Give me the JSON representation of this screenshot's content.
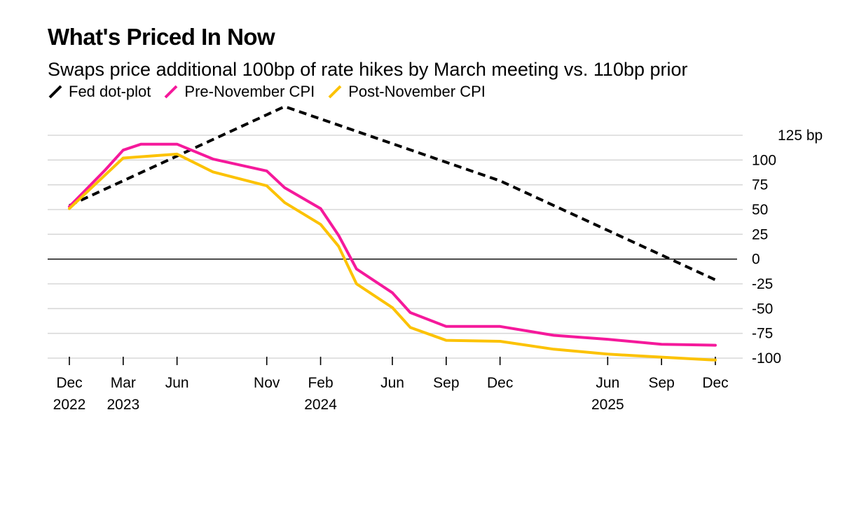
{
  "chart_data": {
    "type": "line",
    "title": "What's Priced In Now",
    "subtitle": "Swaps price additional 100bp of rate hikes by March meeting vs. 110bp prior",
    "y_unit": "bp",
    "ylim": [
      -100,
      125
    ],
    "yticks": [
      125,
      100,
      75,
      50,
      25,
      0,
      -25,
      -50,
      -75,
      -100
    ],
    "ytick_labels": [
      "125 bp",
      "100",
      "75",
      "50",
      "25",
      "0",
      "-25",
      "-50",
      "-75",
      "-100"
    ],
    "grid": true,
    "legend_position": "top-left",
    "x_ticks": [
      {
        "date": "2022-12",
        "label": "Dec",
        "year": "2022"
      },
      {
        "date": "2023-03",
        "label": "Mar",
        "year": "2023"
      },
      {
        "date": "2023-06",
        "label": "Jun",
        "year": ""
      },
      {
        "date": "2023-11",
        "label": "Nov",
        "year": ""
      },
      {
        "date": "2024-02",
        "label": "Feb",
        "year": "2024"
      },
      {
        "date": "2024-06",
        "label": "Jun",
        "year": ""
      },
      {
        "date": "2024-09",
        "label": "Sep",
        "year": ""
      },
      {
        "date": "2024-12",
        "label": "Dec",
        "year": ""
      },
      {
        "date": "2025-06",
        "label": "Jun",
        "year": "2025"
      },
      {
        "date": "2025-09",
        "label": "Sep",
        "year": ""
      },
      {
        "date": "2025-12",
        "label": "Dec",
        "year": ""
      }
    ],
    "series": [
      {
        "name": "Fed dot-plot",
        "color": "#000000",
        "style": "dashed",
        "points": [
          {
            "x": "2022-12",
            "y": 54
          },
          {
            "x": "2023-12",
            "y": 154
          },
          {
            "x": "2024-12",
            "y": 79
          },
          {
            "x": "2025-12",
            "y": -21
          }
        ]
      },
      {
        "name": "Pre-November CPI",
        "color": "#f5199b",
        "style": "solid",
        "points": [
          {
            "x": "2022-12",
            "y": 53
          },
          {
            "x": "2023-02",
            "y": 90
          },
          {
            "x": "2023-03",
            "y": 110
          },
          {
            "x": "2023-04",
            "y": 116
          },
          {
            "x": "2023-06",
            "y": 116
          },
          {
            "x": "2023-08",
            "y": 101
          },
          {
            "x": "2023-11",
            "y": 89
          },
          {
            "x": "2023-12",
            "y": 72
          },
          {
            "x": "2024-02",
            "y": 51
          },
          {
            "x": "2024-03",
            "y": 24
          },
          {
            "x": "2024-04",
            "y": -10
          },
          {
            "x": "2024-06",
            "y": -34
          },
          {
            "x": "2024-07",
            "y": -54
          },
          {
            "x": "2024-09",
            "y": -68
          },
          {
            "x": "2024-12",
            "y": -68
          },
          {
            "x": "2025-03",
            "y": -77
          },
          {
            "x": "2025-06",
            "y": -81
          },
          {
            "x": "2025-09",
            "y": -86
          },
          {
            "x": "2025-12",
            "y": -87
          }
        ]
      },
      {
        "name": "Post-November CPI",
        "color": "#fcc200",
        "style": "solid",
        "points": [
          {
            "x": "2022-12",
            "y": 51
          },
          {
            "x": "2023-03",
            "y": 102
          },
          {
            "x": "2023-06",
            "y": 106
          },
          {
            "x": "2023-08",
            "y": 88
          },
          {
            "x": "2023-11",
            "y": 74
          },
          {
            "x": "2023-12",
            "y": 57
          },
          {
            "x": "2024-02",
            "y": 35
          },
          {
            "x": "2024-03",
            "y": 13
          },
          {
            "x": "2024-04",
            "y": -25
          },
          {
            "x": "2024-06",
            "y": -49
          },
          {
            "x": "2024-07",
            "y": -69
          },
          {
            "x": "2024-09",
            "y": -82
          },
          {
            "x": "2024-12",
            "y": -83
          },
          {
            "x": "2025-03",
            "y": -91
          },
          {
            "x": "2025-06",
            "y": -96
          },
          {
            "x": "2025-09",
            "y": -99
          },
          {
            "x": "2025-12",
            "y": -102
          }
        ]
      }
    ]
  }
}
